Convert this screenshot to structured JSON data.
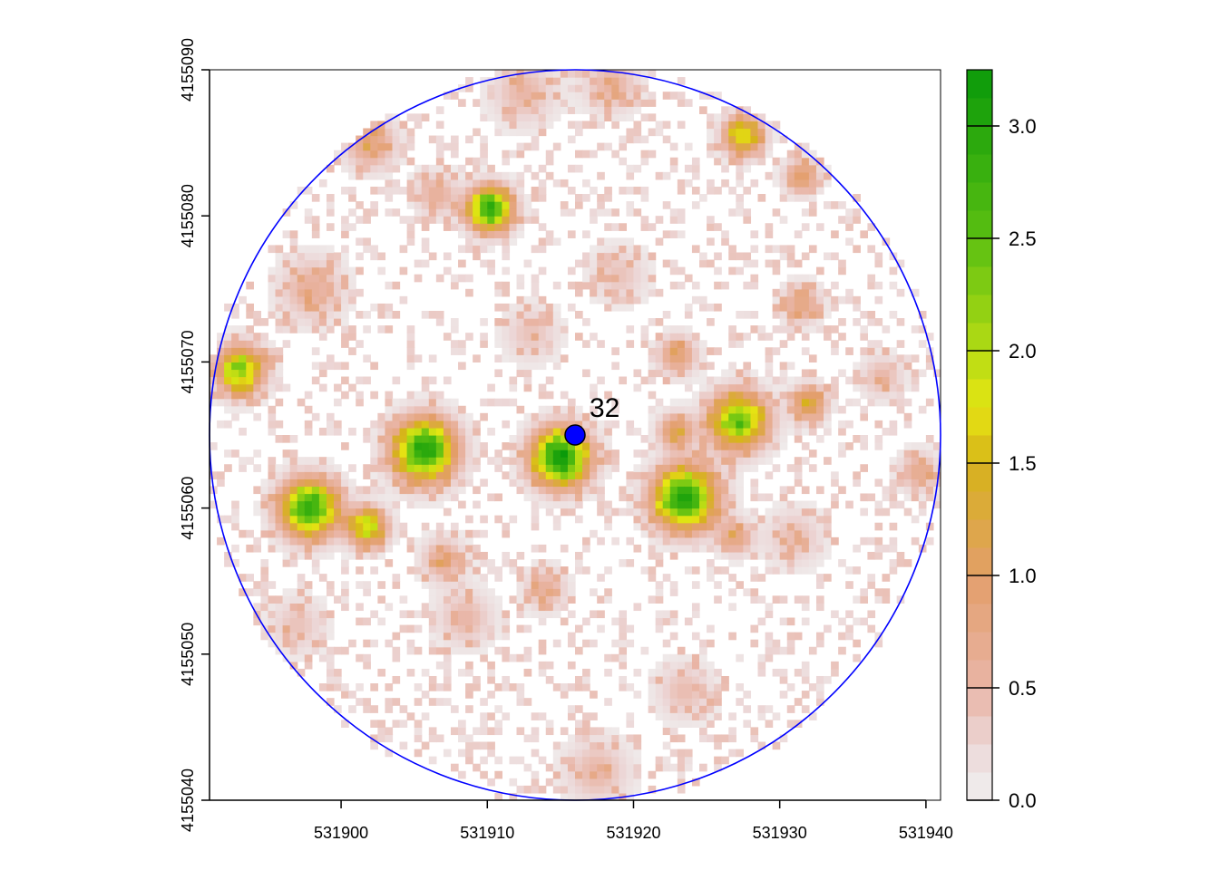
{
  "chart_data": {
    "type": "heatmap",
    "title": "",
    "xlabel": "",
    "ylabel": "",
    "xlim": [
      531891,
      531941
    ],
    "ylim": [
      4155040,
      4155090
    ],
    "x_ticks": [
      531900,
      531910,
      531920,
      531930,
      531940
    ],
    "y_ticks": [
      4155040,
      4155050,
      4155060,
      4155070,
      4155080,
      4155090
    ],
    "grid": false,
    "clip_circle": {
      "center": [
        531916,
        4155065
      ],
      "radius": 25,
      "color": "#0000ff"
    },
    "point": {
      "x": 531916,
      "y": 4155065,
      "label": "32",
      "color": "#0000ff"
    },
    "colorscale": {
      "min": 0.0,
      "max": 3.25,
      "stops": [
        {
          "value": 0.0,
          "color": "#f0f0f0"
        },
        {
          "value": 0.25,
          "color": "#ecd6d6"
        },
        {
          "value": 0.5,
          "color": "#e9b5a6"
        },
        {
          "value": 1.0,
          "color": "#e39e6a"
        },
        {
          "value": 1.5,
          "color": "#d6b31a"
        },
        {
          "value": 1.75,
          "color": "#e6e612"
        },
        {
          "value": 2.0,
          "color": "#b5db14"
        },
        {
          "value": 2.5,
          "color": "#5bbf12"
        },
        {
          "value": 3.25,
          "color": "#0a9a0a"
        }
      ]
    },
    "legend": {
      "placement": "right",
      "ticks": [
        "0.0",
        "0.5",
        "1.0",
        "1.5",
        "2.0",
        "2.5",
        "3.0"
      ],
      "tick_values": [
        0.0,
        0.5,
        1.0,
        1.5,
        2.0,
        2.5,
        3.0
      ]
    },
    "hotspots": [
      {
        "x": 531893.1,
        "y": 4155069.5,
        "peak": 2.1,
        "spread": 1.1
      },
      {
        "x": 531897.8,
        "y": 4155060.0,
        "peak": 2.9,
        "spread": 1.3
      },
      {
        "x": 531901.8,
        "y": 4155058.7,
        "peak": 1.8,
        "spread": 0.9
      },
      {
        "x": 531905.7,
        "y": 4155064.0,
        "peak": 3.0,
        "spread": 1.4
      },
      {
        "x": 531910.2,
        "y": 4155080.5,
        "peak": 2.9,
        "spread": 1.0
      },
      {
        "x": 531915.0,
        "y": 4155063.5,
        "peak": 3.2,
        "spread": 1.3
      },
      {
        "x": 531923.5,
        "y": 4155060.7,
        "peak": 3.1,
        "spread": 1.4
      },
      {
        "x": 531927.2,
        "y": 4155066.0,
        "peak": 2.4,
        "spread": 1.3
      },
      {
        "x": 531927.5,
        "y": 4155085.5,
        "peak": 1.8,
        "spread": 0.9
      },
      {
        "x": 531931.5,
        "y": 4155082.7,
        "peak": 1.0,
        "spread": 0.8
      },
      {
        "x": 531932.0,
        "y": 4155067.2,
        "peak": 1.3,
        "spread": 0.8
      },
      {
        "x": 531922.9,
        "y": 4155065.3,
        "peak": 1.1,
        "spread": 0.8
      },
      {
        "x": 531923.0,
        "y": 4155070.5,
        "peak": 0.9,
        "spread": 0.9
      },
      {
        "x": 531931.5,
        "y": 4155074.0,
        "peak": 0.8,
        "spread": 0.9
      },
      {
        "x": 531907.0,
        "y": 4155056.5,
        "peak": 0.7,
        "spread": 1.0
      },
      {
        "x": 531898.0,
        "y": 4155075.0,
        "peak": 0.6,
        "spread": 1.5
      },
      {
        "x": 531917.5,
        "y": 4155042.0,
        "peak": 0.5,
        "spread": 1.5
      },
      {
        "x": 531914.0,
        "y": 4155054.5,
        "peak": 0.6,
        "spread": 1.0
      },
      {
        "x": 531902.0,
        "y": 4155085.0,
        "peak": 0.8,
        "spread": 1.2
      },
      {
        "x": 531912.5,
        "y": 4155088.5,
        "peak": 0.5,
        "spread": 1.5
      },
      {
        "x": 531918.5,
        "y": 4155089.0,
        "peak": 0.55,
        "spread": 1.3
      },
      {
        "x": 531927.0,
        "y": 4155058.0,
        "peak": 0.8,
        "spread": 0.8
      },
      {
        "x": 531939.5,
        "y": 4155062.5,
        "peak": 0.7,
        "spread": 0.9
      },
      {
        "x": 531937.0,
        "y": 4155069.0,
        "peak": 0.5,
        "spread": 1.0
      },
      {
        "x": 531908.5,
        "y": 4155052.5,
        "peak": 0.5,
        "spread": 1.3
      },
      {
        "x": 531897.0,
        "y": 4155052.0,
        "peak": 0.4,
        "spread": 1.3
      },
      {
        "x": 531923.5,
        "y": 4155047.5,
        "peak": 0.45,
        "spread": 1.3
      },
      {
        "x": 531931.0,
        "y": 4155058.0,
        "peak": 0.45,
        "spread": 1.3
      },
      {
        "x": 531906.5,
        "y": 4155081.5,
        "peak": 0.6,
        "spread": 1.0
      },
      {
        "x": 531913.0,
        "y": 4155072.0,
        "peak": 0.4,
        "spread": 1.3
      },
      {
        "x": 531919.0,
        "y": 4155076.0,
        "peak": 0.4,
        "spread": 1.3
      }
    ]
  }
}
